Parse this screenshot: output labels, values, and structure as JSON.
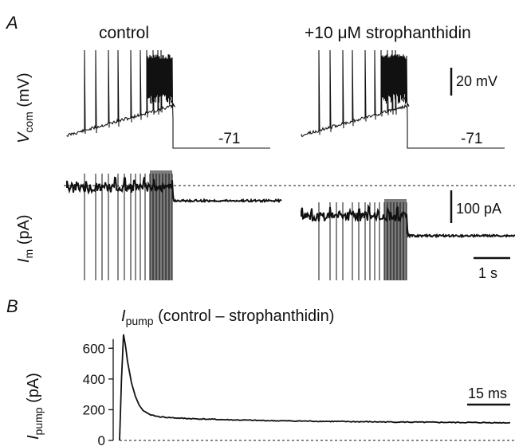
{
  "panel_a": {
    "letter": "A",
    "col_left_title": "control",
    "col_right_title": "+10 μM strophanthidin",
    "vcom_ylabel_main": "V",
    "vcom_ylabel_sub": "com",
    "vcom_ylabel_unit": " (mV)",
    "im_ylabel_main": "I",
    "im_ylabel_sub": "m",
    "im_ylabel_unit": " (pA)",
    "vcom_hold_left": "-71",
    "vcom_hold_right": "-71",
    "scale_v": "20 mV",
    "scale_i": "100 pA",
    "scale_t": "1 s"
  },
  "panel_b": {
    "letter": "B",
    "title_main": "I",
    "title_sub": "pump",
    "title_rest": " (control – strophanthidin)",
    "ylabel_main": "I",
    "ylabel_sub": "pump",
    "ylabel_unit": " (pA)",
    "scale_t": "15 ms"
  },
  "chart_data": [
    {
      "type": "line",
      "panel": "A",
      "description_rows": [
        "Vcom (mV)",
        "Im (pA)"
      ],
      "columns": [
        "control",
        "+10 μM strophanthidin"
      ],
      "holding_potential_mV": -71,
      "scale_bars": {
        "voltage_mV": 20,
        "current_pA": 100,
        "time_s": 1
      }
    },
    {
      "type": "line",
      "panel": "B",
      "ylabel": "Ipump (pA)",
      "yticks": [
        0,
        200,
        400,
        600
      ],
      "ylim": [
        0,
        700
      ],
      "x_unit": "ms",
      "scale_bar_ms": 15,
      "series": [
        {
          "x": [
            0,
            0.5,
            1,
            1.5,
            2,
            3,
            4,
            5,
            6,
            8,
            10,
            12,
            15,
            20,
            30,
            40,
            60,
            80,
            100
          ],
          "y": [
            0,
            400,
            690,
            620,
            520,
            380,
            290,
            230,
            195,
            165,
            155,
            150,
            145,
            140,
            133,
            128,
            122,
            118,
            115
          ]
        }
      ]
    }
  ]
}
